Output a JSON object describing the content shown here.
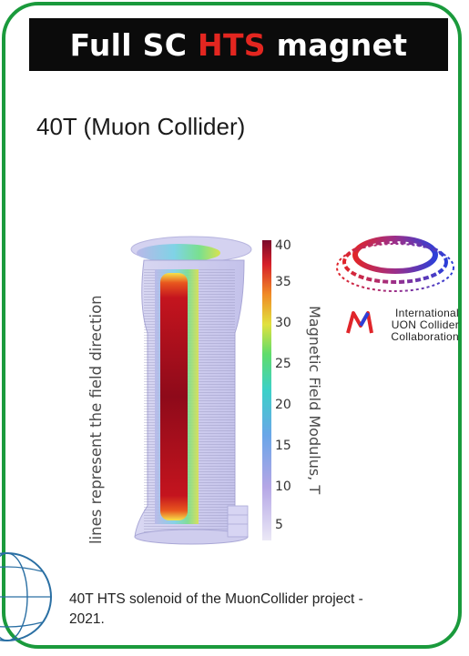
{
  "title": {
    "part1": "Full SC ",
    "part2": "HTS",
    "part3": " magnet"
  },
  "subtitle": "40T (Muon Collider)",
  "figure": {
    "side_caption": "lines represent the field direction",
    "colorbar_label": "Magnetic Field Modulus, T",
    "colorbar_ticks": [
      "40",
      "35",
      "30",
      "25",
      "20",
      "15",
      "10",
      "5"
    ]
  },
  "logo": {
    "line1": "International",
    "line2": "UON Collider",
    "line3": "Collaboration"
  },
  "caption": "40T HTS solenoid of the MuonCollider project - 2021.",
  "colors": {
    "border": "#1a9a3c",
    "title_bg": "#0b0b0b",
    "hts_accent": "#e32620"
  }
}
